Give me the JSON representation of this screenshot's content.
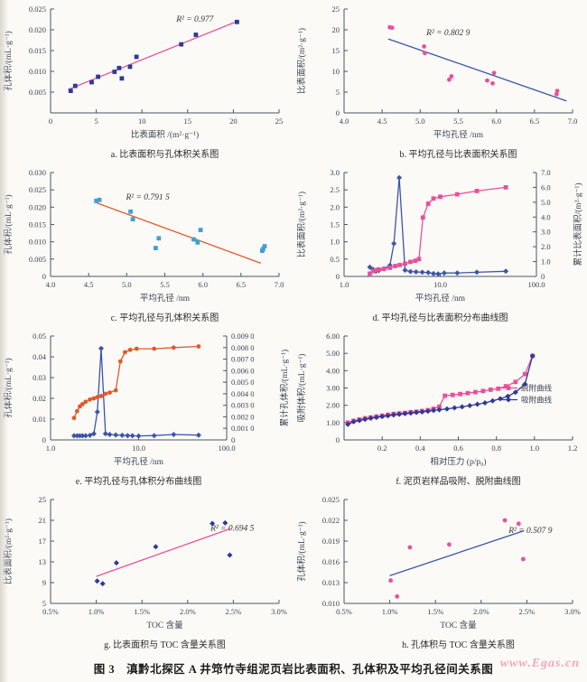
{
  "figure_caption": "图 3　滇黔北探区 A 井筇竹寺组泥页岩比表面积、孔体积及平均孔径间关系图",
  "watermark": "www.Egas.cn",
  "colors": {
    "pink": "#e8509b",
    "navy": "#2e3a96",
    "blue": "#3b55aa",
    "lightblue": "#3fa0d8",
    "orange": "#e05a2b",
    "axis": "#4a5568",
    "text": "#3b4353"
  },
  "chart_data": [
    {
      "id": "a",
      "type": "scatter",
      "caption": "a. 比表面积与孔体积关系图",
      "xlabel": "比表面积 /(m²·g⁻¹)",
      "ylabel": "孔体积/(mL·g⁻¹)",
      "x": {
        "scale": "linear",
        "min": 0,
        "max": 25,
        "ticks": [
          0,
          5,
          10,
          15,
          20,
          25
        ],
        "tick_labels": [
          "0",
          "5",
          "10",
          "15",
          "20",
          "25"
        ]
      },
      "y": {
        "min": 0,
        "max": 0.025,
        "ticks": [
          0.005,
          0.01,
          0.015,
          0.02,
          0.025
        ],
        "tick_labels": [
          "0.005",
          "0.010",
          "0.015",
          "0.020",
          "0.025"
        ]
      },
      "annotations": [
        {
          "text": "R² = 0.977",
          "fx": 0.55,
          "fy": 0.12
        }
      ],
      "series": [
        {
          "name": "趋势线",
          "type": "trend",
          "color": "#e8509b",
          "x": [
            1.9,
            20.6
          ],
          "y": [
            0.0056,
            0.0222
          ]
        },
        {
          "name": "数据点",
          "type": "scatter",
          "marker": "square",
          "color": "#2e3a96",
          "x": [
            2.2,
            2.7,
            4.5,
            5.2,
            7.0,
            7.5,
            7.8,
            8.7,
            9.4,
            14.3,
            15.9,
            20.4
          ],
          "y": [
            0.0053,
            0.0065,
            0.0074,
            0.0087,
            0.0099,
            0.0108,
            0.0083,
            0.0111,
            0.0135,
            0.0165,
            0.0188,
            0.0219
          ]
        }
      ]
    },
    {
      "id": "b",
      "type": "scatter",
      "caption": "b. 平均孔径与比表面积关系图",
      "xlabel": "平均孔径 /nm",
      "ylabel": "比表面积/(m²·g⁻¹)",
      "x": {
        "scale": "linear",
        "min": 4.0,
        "max": 7.0,
        "ticks": [
          4.0,
          4.5,
          5.0,
          5.5,
          6.0,
          6.5,
          7.0
        ],
        "tick_labels": [
          "4.0",
          "4.5",
          "5.0",
          "5.5",
          "6.0",
          "6.5",
          "7.0"
        ]
      },
      "y": {
        "min": 0,
        "max": 25,
        "ticks": [
          0,
          5,
          10,
          15,
          20,
          25
        ],
        "tick_labels": [
          "0",
          "5",
          "10",
          "15",
          "20",
          "25"
        ]
      },
      "annotations": [
        {
          "text": "R² = 0.802 9",
          "fx": 0.36,
          "fy": 0.25
        }
      ],
      "series": [
        {
          "name": "趋势线",
          "type": "trend",
          "color": "#3b55aa",
          "x": [
            4.58,
            6.92
          ],
          "y": [
            17.8,
            2.9
          ]
        },
        {
          "name": "数据点",
          "type": "scatter",
          "marker": "circle",
          "color": "#e8509b",
          "x": [
            4.6,
            4.63,
            5.05,
            5.06,
            5.38,
            5.41,
            5.88,
            5.95,
            5.97,
            6.79,
            6.8
          ],
          "y": [
            20.6,
            20.5,
            16.0,
            14.4,
            8.0,
            8.8,
            7.8,
            7.1,
            9.6,
            4.5,
            5.3
          ]
        }
      ]
    },
    {
      "id": "c",
      "type": "scatter",
      "caption": "c. 平均孔径与孔体积关系图",
      "xlabel": "平均孔径 /nm",
      "ylabel": "孔体积/(mL·g⁻¹)",
      "x": {
        "scale": "linear",
        "min": 4.0,
        "max": 7.0,
        "ticks": [
          4.0,
          4.5,
          5.0,
          5.5,
          6.0,
          6.5,
          7.0
        ],
        "tick_labels": [
          "4.0",
          "4.5",
          "5.0",
          "5.5",
          "6.0",
          "6.5",
          "7.0"
        ]
      },
      "y": {
        "min": 0,
        "max": 0.03,
        "ticks": [
          0,
          0.005,
          0.01,
          0.015,
          0.02,
          0.025,
          0.03
        ],
        "tick_labels": [
          "0",
          "0.005",
          "0.010",
          "0.015",
          "0.020",
          "0.025",
          "0.030"
        ]
      },
      "annotations": [
        {
          "text": "R² = 0.791 5",
          "fx": 0.33,
          "fy": 0.26
        }
      ],
      "series": [
        {
          "name": "趋势线",
          "type": "trend",
          "color": "#e05a2b",
          "x": [
            4.6,
            6.76
          ],
          "y": [
            0.0213,
            0.0038
          ]
        },
        {
          "name": "数据点",
          "type": "scatter",
          "marker": "square",
          "color": "#3fa0d8",
          "x": [
            4.6,
            4.64,
            5.05,
            5.08,
            5.38,
            5.42,
            5.88,
            5.93,
            5.97,
            6.78,
            6.79,
            6.81
          ],
          "y": [
            0.0218,
            0.0221,
            0.0187,
            0.0165,
            0.0082,
            0.011,
            0.0107,
            0.0098,
            0.0134,
            0.0074,
            0.0079,
            0.0087
          ]
        }
      ]
    },
    {
      "id": "d",
      "type": "line",
      "caption": "d. 平均孔径与比表面积分布曲线图",
      "xlabel": "平均孔径 /nm",
      "ylabel": "比表面积/(m²·g⁻¹)",
      "ylabel2": "累计比表面积/(m²·g⁻¹)",
      "x": {
        "scale": "log",
        "min": 1.0,
        "max": 100.0,
        "ticks": [
          1.0,
          10.0,
          100.0
        ],
        "tick_labels": [
          "1.0",
          "10.0",
          "100.0"
        ]
      },
      "y": {
        "min": 0,
        "max": 3.0,
        "ticks": [
          0,
          0.5,
          1.0,
          1.5,
          2.0,
          2.5,
          3.0
        ],
        "tick_labels": [
          "0",
          "0.5",
          "1.0",
          "1.5",
          "2.0",
          "2.5",
          "3.0"
        ]
      },
      "y2": {
        "min": 0,
        "max": 7.0,
        "ticks": [
          0,
          1.0,
          2.0,
          3.0,
          4.0,
          5.0,
          6.0,
          7.0
        ],
        "tick_labels": [
          "0",
          "1.0",
          "2.0",
          "3.0",
          "4.0",
          "5.0",
          "6.0",
          "7.0"
        ]
      },
      "series": [
        {
          "name": "比表面积分布",
          "type": "line",
          "marker": "diamond",
          "color": "#3b55aa",
          "axis": "y",
          "x": [
            1.85,
            2.0,
            2.15,
            2.3,
            2.6,
            3.0,
            3.3,
            3.75,
            4.3,
            4.9,
            5.6,
            6.5,
            7.5,
            8.5,
            9.5,
            11,
            15,
            24,
            48
          ],
          "y": [
            0.27,
            0.2,
            0.15,
            0.17,
            0.22,
            0.32,
            0.95,
            2.85,
            0.18,
            0.14,
            0.13,
            0.12,
            0.11,
            0.08,
            0.07,
            0.1,
            0.1,
            0.12,
            0.15
          ]
        },
        {
          "name": "累计比表面积",
          "type": "line",
          "marker": "square",
          "color": "#e8509b",
          "axis": "y2",
          "x": [
            1.85,
            2.0,
            2.15,
            2.3,
            2.6,
            3.0,
            3.4,
            3.8,
            4.3,
            4.9,
            5.5,
            6.0,
            6.6,
            7.5,
            8.5,
            10,
            15,
            24,
            48
          ],
          "y": [
            0.19,
            0.35,
            0.42,
            0.47,
            0.51,
            0.58,
            0.7,
            0.77,
            0.86,
            0.98,
            1.05,
            1.17,
            3.97,
            4.9,
            5.25,
            5.37,
            5.53,
            5.76,
            6.0
          ]
        }
      ]
    },
    {
      "id": "e",
      "type": "line",
      "caption": "e. 平均孔径与孔体积分布曲线图",
      "xlabel": "平均孔径 /nm",
      "ylabel": "孔体积/(mL·g⁻¹)",
      "ylabel2": "累计孔体积/(mL·g⁻¹)",
      "x": {
        "scale": "log",
        "min": 1.0,
        "max": 100.0,
        "ticks": [
          1.0,
          10.0,
          100.0
        ],
        "tick_labels": [
          "1.0",
          "10.0",
          "100.0"
        ]
      },
      "y": {
        "min": 0,
        "max": 0.05,
        "ticks": [
          0,
          0.01,
          0.02,
          0.03,
          0.04,
          0.05
        ],
        "tick_labels": [
          "0",
          "0.01",
          "0.02",
          "0.03",
          "0.04",
          "0.05"
        ]
      },
      "y2": {
        "min": 0,
        "max": 0.009,
        "ticks": [
          0,
          0.001,
          0.002,
          0.003,
          0.004,
          0.005,
          0.006,
          0.007,
          0.008,
          0.009
        ],
        "tick_labels": [
          "0",
          "0.001 0",
          "0.002 0",
          "0.003 0",
          "0.004 0",
          "0.005 0",
          "0.006 0",
          "0.007 0",
          "0.008 0",
          "0.009 0"
        ]
      },
      "series": [
        {
          "name": "孔体积分布",
          "type": "line",
          "marker": "diamond",
          "color": "#3b55aa",
          "axis": "y",
          "x": [
            1.85,
            2.0,
            2.15,
            2.3,
            2.5,
            2.8,
            3.1,
            3.4,
            3.75,
            4.2,
            4.7,
            5.5,
            6.5,
            7.5,
            8.5,
            10,
            15,
            25,
            48
          ],
          "y": [
            0.002,
            0.002,
            0.002,
            0.002,
            0.002,
            0.0022,
            0.003,
            0.0135,
            0.044,
            0.003,
            0.0026,
            0.0024,
            0.0022,
            0.0021,
            0.002,
            0.0019,
            0.0021,
            0.0026,
            0.0023
          ]
        },
        {
          "name": "累计孔体积",
          "type": "line",
          "marker": "circle",
          "color": "#e05a2b",
          "axis": "y2",
          "x": [
            1.85,
            2.0,
            2.15,
            2.3,
            2.5,
            2.8,
            3.1,
            3.4,
            3.75,
            4.2,
            4.7,
            5.5,
            6.2,
            7.0,
            8.0,
            9.5,
            15,
            25,
            48
          ],
          "y": [
            0.0019,
            0.0025,
            0.0029,
            0.0031,
            0.0033,
            0.0035,
            0.0036,
            0.0037,
            0.0038,
            0.004,
            0.0041,
            0.0043,
            0.0068,
            0.0076,
            0.0078,
            0.0079,
            0.0079,
            0.008,
            0.0081
          ]
        }
      ]
    },
    {
      "id": "f",
      "type": "line",
      "caption": "f. 泥页岩样品吸附、脱附曲线图",
      "xlabel": "相对压力 (p/p₀)",
      "ylabel": "吸附体积/(mL·g⁻¹)",
      "x": {
        "scale": "linear",
        "min": 0,
        "max": 1.2,
        "ticks": [
          0,
          0.2,
          0.4,
          0.6,
          0.8,
          1.0,
          1.2
        ],
        "tick_labels": [
          "",
          "0.2",
          "0.4",
          "0.6",
          "0.8",
          "1.0",
          "1.2"
        ]
      },
      "y": {
        "min": 0,
        "max": 6.0,
        "ticks": [
          0,
          1.0,
          2.0,
          3.0,
          4.0,
          5.0,
          6.0
        ],
        "tick_labels": [
          "0",
          "1.00",
          "2.00",
          "3.00",
          "4.00",
          "5.00",
          "6.00"
        ]
      },
      "legend": {
        "fx": 0.68,
        "fy": 0.5,
        "entries": [
          {
            "label": "脱附曲线",
            "color": "#e8509b",
            "marker": "square"
          },
          {
            "label": "吸附曲线",
            "color": "#2e3a96",
            "marker": "diamond"
          }
        ]
      },
      "series": [
        {
          "name": "脱附曲线",
          "type": "line",
          "marker": "square",
          "color": "#e8509b",
          "x": [
            0.02,
            0.05,
            0.08,
            0.11,
            0.14,
            0.17,
            0.2,
            0.23,
            0.26,
            0.29,
            0.32,
            0.35,
            0.38,
            0.41,
            0.44,
            0.47,
            0.5,
            0.53,
            0.57,
            0.61,
            0.65,
            0.69,
            0.73,
            0.77,
            0.81,
            0.85,
            0.9,
            0.95,
            0.99
          ],
          "y": [
            1.0,
            1.1,
            1.18,
            1.25,
            1.3,
            1.35,
            1.4,
            1.45,
            1.5,
            1.53,
            1.56,
            1.6,
            1.63,
            1.67,
            1.72,
            1.8,
            1.92,
            2.55,
            2.6,
            2.65,
            2.7,
            2.76,
            2.82,
            2.9,
            2.96,
            3.1,
            3.35,
            3.8,
            4.85
          ]
        },
        {
          "name": "吸附曲线",
          "type": "line",
          "marker": "diamond",
          "color": "#2e3a96",
          "x": [
            0.02,
            0.05,
            0.08,
            0.11,
            0.14,
            0.17,
            0.2,
            0.23,
            0.26,
            0.29,
            0.32,
            0.35,
            0.38,
            0.41,
            0.44,
            0.47,
            0.5,
            0.54,
            0.58,
            0.62,
            0.66,
            0.7,
            0.74,
            0.78,
            0.82,
            0.86,
            0.9,
            0.95,
            0.99
          ],
          "y": [
            0.9,
            1.05,
            1.12,
            1.19,
            1.25,
            1.3,
            1.35,
            1.4,
            1.44,
            1.48,
            1.52,
            1.55,
            1.59,
            1.62,
            1.66,
            1.7,
            1.74,
            1.79,
            1.85,
            1.91,
            1.98,
            2.06,
            2.14,
            2.26,
            2.38,
            2.52,
            2.75,
            3.22,
            4.85
          ]
        }
      ]
    },
    {
      "id": "g",
      "type": "scatter",
      "caption": "g. 比表面积与 TOC 含量关系图",
      "xlabel": "TOC 含量",
      "ylabel": "比表面积/(m²·g⁻¹)",
      "x": {
        "scale": "linear",
        "min": 0.5,
        "max": 3.0,
        "ticks": [
          0.5,
          1.0,
          1.5,
          2.0,
          2.5,
          3.0
        ],
        "tick_labels": [
          "0.5%",
          "1.0%",
          "1.5%",
          "2.0%",
          "2.5%",
          "3.0%"
        ]
      },
      "y": {
        "min": 5,
        "max": 25,
        "ticks": [
          5,
          9,
          13,
          17,
          21,
          25
        ],
        "tick_labels": [
          "5",
          "9",
          "13",
          "17",
          "21",
          "25"
        ]
      },
      "annotations": [
        {
          "text": "R² = 0.694 5",
          "fx": 0.7,
          "fy": 0.3
        }
      ],
      "series": [
        {
          "name": "趋势线",
          "type": "trend",
          "color": "#e8509b",
          "x": [
            1.0,
            2.47
          ],
          "y": [
            10.2,
            19.4
          ]
        },
        {
          "name": "数据点",
          "type": "scatter",
          "marker": "diamond",
          "color": "#2e3a96",
          "x": [
            1.01,
            1.07,
            1.22,
            1.65,
            2.27,
            2.41,
            2.46
          ],
          "y": [
            9.3,
            8.8,
            12.8,
            15.9,
            20.4,
            20.5,
            14.3
          ]
        }
      ]
    },
    {
      "id": "h",
      "type": "scatter",
      "caption": "h. 孔体积与 TOC 含量关系图",
      "xlabel": "TOC 含量",
      "ylabel": "孔体积/(mL·g⁻¹)",
      "x": {
        "scale": "linear",
        "min": 0.5,
        "max": 3.0,
        "ticks": [
          0.5,
          1.0,
          1.5,
          2.0,
          2.5,
          3.0
        ],
        "tick_labels": [
          "0.5%",
          "1.0%",
          "1.5%",
          "2.0%",
          "2.5%",
          "3.0%"
        ]
      },
      "y": {
        "min": 0.01,
        "max": 0.025,
        "ticks": [
          0.01,
          0.013,
          0.016,
          0.019,
          0.022,
          0.025
        ],
        "tick_labels": [
          "0.010",
          "0.013",
          "0.016",
          "0.019",
          "0.022",
          "0.025"
        ]
      },
      "annotations": [
        {
          "text": "R² = 0.507 9",
          "fx": 0.72,
          "fy": 0.32
        }
      ],
      "series": [
        {
          "name": "趋势线",
          "type": "trend",
          "color": "#3b55aa",
          "x": [
            1.0,
            2.47
          ],
          "y": [
            0.014,
            0.0205
          ]
        },
        {
          "name": "数据点",
          "type": "scatter",
          "marker": "circle",
          "color": "#e8509b",
          "x": [
            1.01,
            1.08,
            1.22,
            1.65,
            2.26,
            2.41,
            2.46
          ],
          "y": [
            0.0133,
            0.011,
            0.0181,
            0.0185,
            0.022,
            0.0215,
            0.0164
          ]
        }
      ]
    }
  ]
}
